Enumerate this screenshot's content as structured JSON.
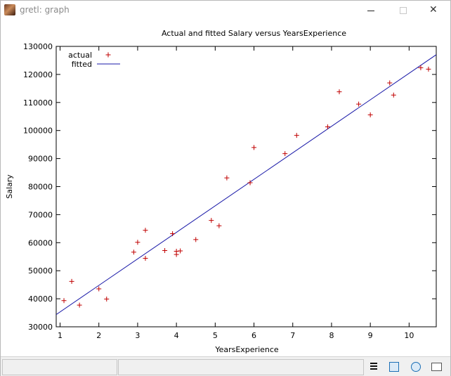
{
  "window": {
    "title": "gretl: graph",
    "icon": "gretl-icon",
    "controls": {
      "minimize": "minimize-icon",
      "maximize": "maximize-icon",
      "close": "✕"
    }
  },
  "chart_data": {
    "type": "scatter",
    "title": "Actual and fitted Salary versus YearsExperience",
    "xlabel": "YearsExperience",
    "ylabel": "Salary",
    "xlim": [
      0.9,
      10.7
    ],
    "ylim": [
      30000,
      130000
    ],
    "x_ticks": [
      "1",
      "2",
      "3",
      "4",
      "5",
      "6",
      "7",
      "8",
      "9",
      "10"
    ],
    "y_ticks": [
      "30000",
      "40000",
      "50000",
      "60000",
      "70000",
      "80000",
      "90000",
      "100000",
      "110000",
      "120000",
      "130000"
    ],
    "legend_position": "top-left",
    "series": [
      {
        "name": "actual",
        "style": "plus",
        "color": "#c00000",
        "points": [
          [
            1.1,
            39343
          ],
          [
            1.3,
            46205
          ],
          [
            1.5,
            37731
          ],
          [
            2.0,
            43525
          ],
          [
            2.2,
            39891
          ],
          [
            2.9,
            56642
          ],
          [
            3.0,
            60150
          ],
          [
            3.2,
            54445
          ],
          [
            3.2,
            64445
          ],
          [
            3.7,
            57189
          ],
          [
            3.9,
            63218
          ],
          [
            4.0,
            55794
          ],
          [
            4.0,
            56957
          ],
          [
            4.1,
            57081
          ],
          [
            4.5,
            61111
          ],
          [
            4.9,
            67938
          ],
          [
            5.1,
            66029
          ],
          [
            5.3,
            83088
          ],
          [
            5.9,
            81363
          ],
          [
            6.0,
            93940
          ],
          [
            6.8,
            91738
          ],
          [
            7.1,
            98273
          ],
          [
            7.9,
            101302
          ],
          [
            8.2,
            113812
          ],
          [
            8.7,
            109431
          ],
          [
            9.0,
            105582
          ],
          [
            9.5,
            116969
          ],
          [
            9.6,
            112635
          ],
          [
            10.3,
            122391
          ],
          [
            10.5,
            121872
          ]
        ]
      },
      {
        "name": "fitted",
        "style": "line",
        "color": "#1a1aa8",
        "line": [
          [
            0.9,
            34370
          ],
          [
            10.7,
            127030
          ]
        ]
      }
    ]
  },
  "statusbar": {
    "tools": [
      {
        "name": "menu-icon"
      },
      {
        "name": "zoom-icon"
      },
      {
        "name": "center-icon"
      },
      {
        "name": "close-graph-icon"
      }
    ]
  }
}
